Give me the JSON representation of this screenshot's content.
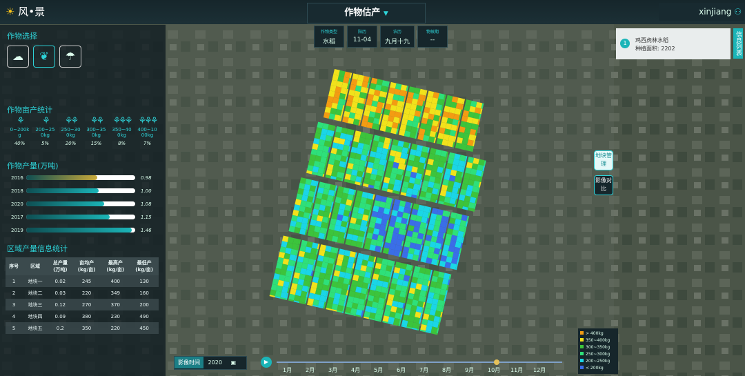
{
  "header": {
    "logo": "风•景",
    "title": "作物估产",
    "user": "xinjiang"
  },
  "crop_select": {
    "title": "作物选择"
  },
  "yield_per_mu": {
    "title": "作物亩产统计",
    "items": [
      {
        "range": "0~200kg",
        "percent": "40%"
      },
      {
        "range": "200~250kg",
        "percent": "5%"
      },
      {
        "range": "250~300kg",
        "percent": "20%"
      },
      {
        "range": "300~350kg",
        "percent": "15%"
      },
      {
        "range": "350~400kg",
        "percent": "8%"
      },
      {
        "range": "400~1000kg",
        "percent": "7%"
      }
    ]
  },
  "production": {
    "title": "作物产量(万吨)",
    "bars": [
      {
        "year": "2016",
        "value": 0.98,
        "label": "0.98",
        "color": "#c9a93a"
      },
      {
        "year": "2018",
        "value": 1.0,
        "label": "1.00",
        "color": "#1bb5b8"
      },
      {
        "year": "2020",
        "value": 1.08,
        "label": "1.08",
        "color": "#1bb5b8"
      },
      {
        "year": "2017",
        "value": 1.15,
        "label": "1.15",
        "color": "#1bb5b8"
      },
      {
        "year": "2019",
        "value": 1.46,
        "label": "1.46",
        "color": "#1bb5b8"
      }
    ]
  },
  "region_table": {
    "title": "区域产量信息统计",
    "headers": [
      {
        "name": "序号"
      },
      {
        "name": "区域"
      },
      {
        "name": "总产量",
        "unit": "(万吨)"
      },
      {
        "name": "亩均产",
        "unit": "(kg/亩)"
      },
      {
        "name": "最高产",
        "unit": "(kg/亩)"
      },
      {
        "name": "最低产",
        "unit": "(kg/亩)"
      }
    ],
    "rows": [
      [
        "1",
        "地块一",
        "0.02",
        "245",
        "400",
        "130"
      ],
      [
        "2",
        "地块二",
        "0.03",
        "220",
        "349",
        "160"
      ],
      [
        "3",
        "地块三",
        "0.12",
        "270",
        "370",
        "200"
      ],
      [
        "4",
        "地块四",
        "0.09",
        "380",
        "230",
        "490"
      ],
      [
        "5",
        "地块五",
        "0.2",
        "350",
        "220",
        "450"
      ]
    ]
  },
  "info": {
    "items": [
      {
        "label": "作物类型",
        "value": "水稻"
      },
      {
        "label": "阳历",
        "value": "11-04"
      },
      {
        "label": "农历",
        "value": "九月十九"
      },
      {
        "label": "物候期",
        "value": "--"
      }
    ]
  },
  "field_card": {
    "index": "1",
    "name": "鸡西虎林水稻",
    "area": "种植面积: 2202"
  },
  "side_tab": "信息列表",
  "buttons": [
    "地块管理",
    "影像对比"
  ],
  "legend": [
    {
      "label": "> 400kg",
      "color": "#f39c12"
    },
    {
      "label": "350~400kg",
      "color": "#f1e21b"
    },
    {
      "label": "300~350kg",
      "color": "#3cc43c"
    },
    {
      "label": "250~300kg",
      "color": "#2ee07a"
    },
    {
      "label": "200~250kg",
      "color": "#1ad6e6"
    },
    {
      "label": "< 200kg",
      "color": "#3a6ee8"
    }
  ],
  "timeline": {
    "label": "影像时间",
    "year": "2020",
    "months": [
      "1月",
      "2月",
      "3月",
      "4月",
      "5月",
      "6月",
      "7月",
      "8月",
      "9月",
      "10月",
      "11月",
      "12月"
    ]
  }
}
